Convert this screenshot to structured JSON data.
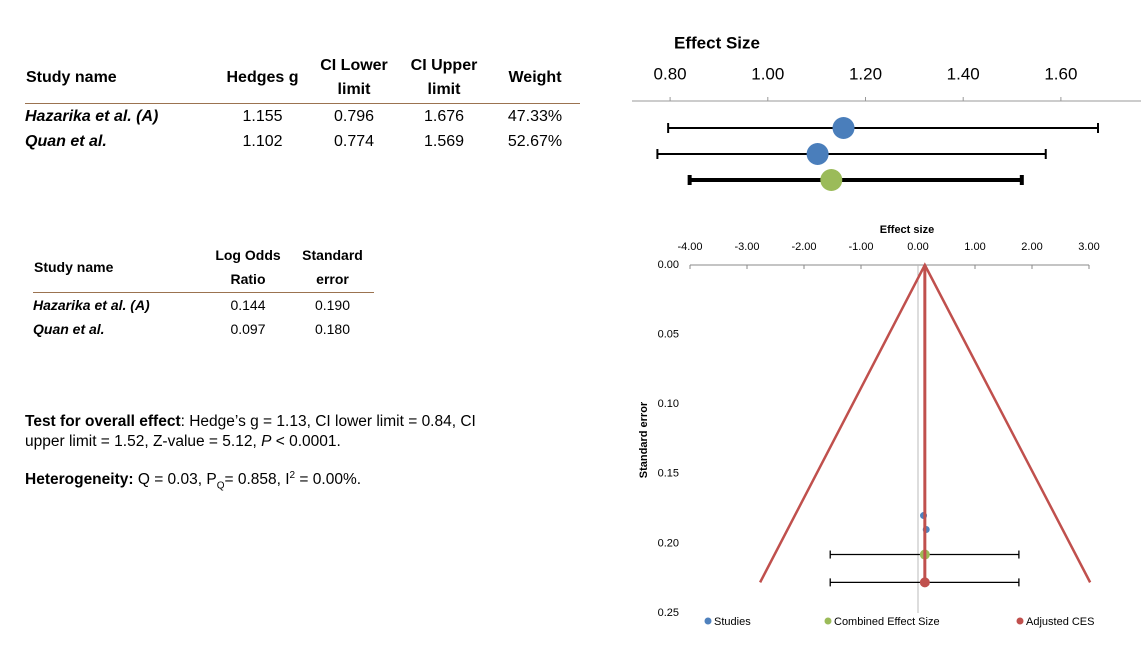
{
  "table1": {
    "headers": [
      "Study name",
      "Hedges g",
      "CI Lower limit",
      "CI Upper limit",
      "Weight"
    ],
    "rows": [
      [
        "Hazarika et al. (A)",
        "1.155",
        "0.796",
        "1.676",
        "47.33%"
      ],
      [
        "Quan et al.",
        "1.102",
        "0.774",
        "1.569",
        "52.67%"
      ]
    ]
  },
  "table2": {
    "headers": [
      "Study name",
      "Log Odds Ratio",
      "Standard error"
    ],
    "rows": [
      [
        "Hazarika et al. (A)",
        "0.144",
        "0.190"
      ],
      [
        "Quan et al.",
        "0.097",
        "0.180"
      ]
    ]
  },
  "summary": {
    "overall_label": "Test for overall effect",
    "overall_text": ": Hedge’s g = 1.13, CI lower limit = 0.84, CI upper limit = 1.52, Z-value = 5.12, ",
    "overall_p": "P",
    "overall_end": " < 0.0001.",
    "het_label": "Heterogeneity:",
    "het_text1": " Q = 0.03, P",
    "het_sub": "Q",
    "het_text2": "=  0.858, I",
    "het_sup": "2",
    "het_text3": " = 0.00%."
  },
  "chart_data": [
    {
      "type": "forest",
      "title": "Effect Size",
      "xlim": [
        0.722,
        1.764
      ],
      "xticks": [
        {
          "value": 0.8,
          "label": "0.80"
        },
        {
          "value": 1.0,
          "label": "1.00"
        },
        {
          "value": 1.2,
          "label": "1.20"
        },
        {
          "value": 1.4,
          "label": "1.40"
        },
        {
          "value": 1.6,
          "label": "1.60"
        }
      ],
      "points": [
        {
          "value": 1.155,
          "lower": 0.796,
          "upper": 1.676,
          "color": "#4a7ebb"
        },
        {
          "value": 1.102,
          "lower": 0.774,
          "upper": 1.569,
          "color": "#4a7ebb"
        },
        {
          "value": 1.13,
          "lower": 0.84,
          "upper": 1.52,
          "color": "#9bbb59"
        }
      ]
    },
    {
      "type": "funnel",
      "title": "Effect size",
      "y_label": "Standard error",
      "xlim": [
        -4,
        3
      ],
      "ylim": [
        0,
        0.25
      ],
      "y_inverted": true,
      "xticks": [
        {
          "value": -4,
          "label": "-4.00"
        },
        {
          "value": -3,
          "label": "-3.00"
        },
        {
          "value": -2,
          "label": "-2.00"
        },
        {
          "value": -1,
          "label": "-1.00"
        },
        {
          "value": 0,
          "label": "0.00"
        },
        {
          "value": 1,
          "label": "1.00"
        },
        {
          "value": 2,
          "label": "2.00"
        },
        {
          "value": 3,
          "label": "3.00"
        }
      ],
      "yticks": [
        {
          "value": 0,
          "label": "0.00"
        },
        {
          "value": 0.05,
          "label": "0.05"
        },
        {
          "value": 0.1,
          "label": "0.10"
        },
        {
          "value": 0.15,
          "label": "0.15"
        },
        {
          "value": 0.2,
          "label": "0.20"
        },
        {
          "value": 0.25,
          "label": "0.25"
        }
      ],
      "funnel": {
        "x": [
          -2.77,
          0.12,
          3.02
        ],
        "y": [
          0.228,
          0,
          0.228
        ],
        "color": "#c0504d"
      },
      "series": [
        {
          "name": "Studies",
          "color": "#4f81bd",
          "x": [
            0.144,
            0.097
          ],
          "y": [
            0.19,
            0.18
          ]
        },
        {
          "name": "Combined Effect Size",
          "color": "#9bbb59",
          "x": [
            0.12
          ],
          "y": [
            0.208
          ],
          "lower": [
            -1.54
          ],
          "upper": [
            1.77
          ]
        },
        {
          "name": "Adjusted CES",
          "color": "#c0504d",
          "x": [
            0.12
          ],
          "y": [
            0.228
          ],
          "lower": [
            -1.54
          ],
          "upper": [
            1.77
          ]
        }
      ]
    }
  ]
}
